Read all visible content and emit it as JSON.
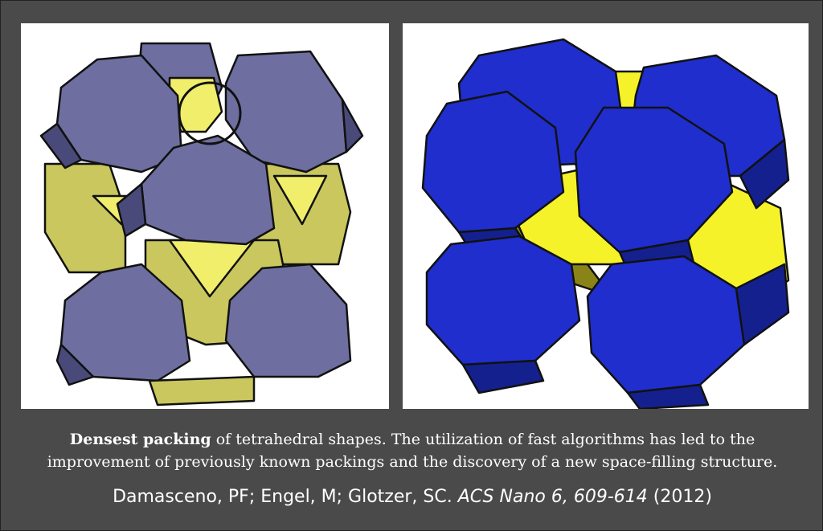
{
  "caption": {
    "bold": "Densest packing",
    "rest": " of tetrahedral shapes. The utilization of fast algorithms has led to the improvement of previously known packings and the discovery of a new space-filling structure."
  },
  "citation": {
    "authors": "Damasceno, PF; Engel, M; Glotzer, SC. ",
    "journal": "ACS Nano 6, 609-614",
    "year": " (2012)"
  },
  "colors": {
    "background": "#4a4a4a",
    "purple_face": "#6e6ea0",
    "purple_dark": "#4a4a7a",
    "olive": "#c9c75e",
    "yellow": "#f0ee6a",
    "blue": "#1f2ecc",
    "blue_dark": "#15208f",
    "bright_yellow": "#f5f22a",
    "dark_olive": "#8a8418"
  }
}
